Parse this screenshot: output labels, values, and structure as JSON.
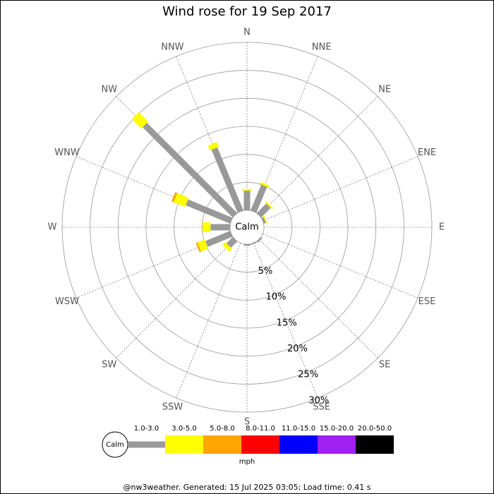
{
  "chart_data": {
    "type": "windrose",
    "title": "Wind rose for 19 Sep 2017",
    "directions": [
      "N",
      "NNE",
      "NE",
      "ENE",
      "E",
      "ESE",
      "SE",
      "SSE",
      "S",
      "SSW",
      "SW",
      "WSW",
      "W",
      "WNW",
      "NW",
      "NNW"
    ],
    "center_label": "Calm",
    "rlim": [
      0,
      30
    ],
    "rticks": [
      {
        "value": 5,
        "label": "5%"
      },
      {
        "value": 10,
        "label": "10%"
      },
      {
        "value": 15,
        "label": "15%"
      },
      {
        "value": 20,
        "label": "20%"
      },
      {
        "value": 25,
        "label": "25%"
      },
      {
        "value": 30,
        "label": "30%"
      }
    ],
    "series": [
      {
        "name": "1.0-3.0",
        "color": "#999999",
        "values": [
          3.5,
          5,
          2.4,
          0.4,
          0,
          0,
          0.3,
          0.2,
          0.3,
          0,
          1.6,
          4.8,
          3.5,
          8.6,
          22.8,
          12.2
        ]
      },
      {
        "name": "3.0-5.0",
        "color": "#ffff00",
        "values": [
          0.3,
          0.4,
          0.3,
          0.2,
          0,
          0,
          0,
          0,
          0,
          0,
          0.7,
          1.4,
          1.4,
          2.2,
          2.4,
          0.9
        ]
      },
      {
        "name": "5.0-8.0",
        "color": "#ffa500",
        "values": [
          0,
          0,
          0,
          0,
          0,
          0,
          0,
          0,
          0,
          0,
          0,
          0.3,
          0,
          0.4,
          0,
          0
        ]
      },
      {
        "name": "8.0-11.0",
        "color": "#ff0000",
        "values": [
          0,
          0,
          0,
          0,
          0,
          0,
          0,
          0,
          0,
          0,
          0,
          0,
          0,
          0,
          0,
          0
        ]
      },
      {
        "name": "11.0-15.0",
        "color": "#0000ff",
        "values": [
          0,
          0,
          0,
          0,
          0,
          0,
          0,
          0,
          0,
          0,
          0,
          0,
          0,
          0,
          0,
          0
        ]
      },
      {
        "name": "15.0-20.0",
        "color": "#a020f0",
        "values": [
          0,
          0,
          0,
          0,
          0,
          0,
          0,
          0,
          0,
          0,
          0,
          0,
          0,
          0,
          0,
          0
        ]
      },
      {
        "name": "20.0-50.0",
        "color": "#000000",
        "values": [
          0,
          0,
          0,
          0,
          0,
          0,
          0,
          0,
          0,
          0,
          0,
          0,
          0,
          0,
          0,
          0
        ]
      }
    ],
    "legend_calm": "Calm",
    "unit": "mph",
    "footer": "@nw3weather. Generated: 15 Jul 2025 03:05; Load time: 0.41 s"
  }
}
